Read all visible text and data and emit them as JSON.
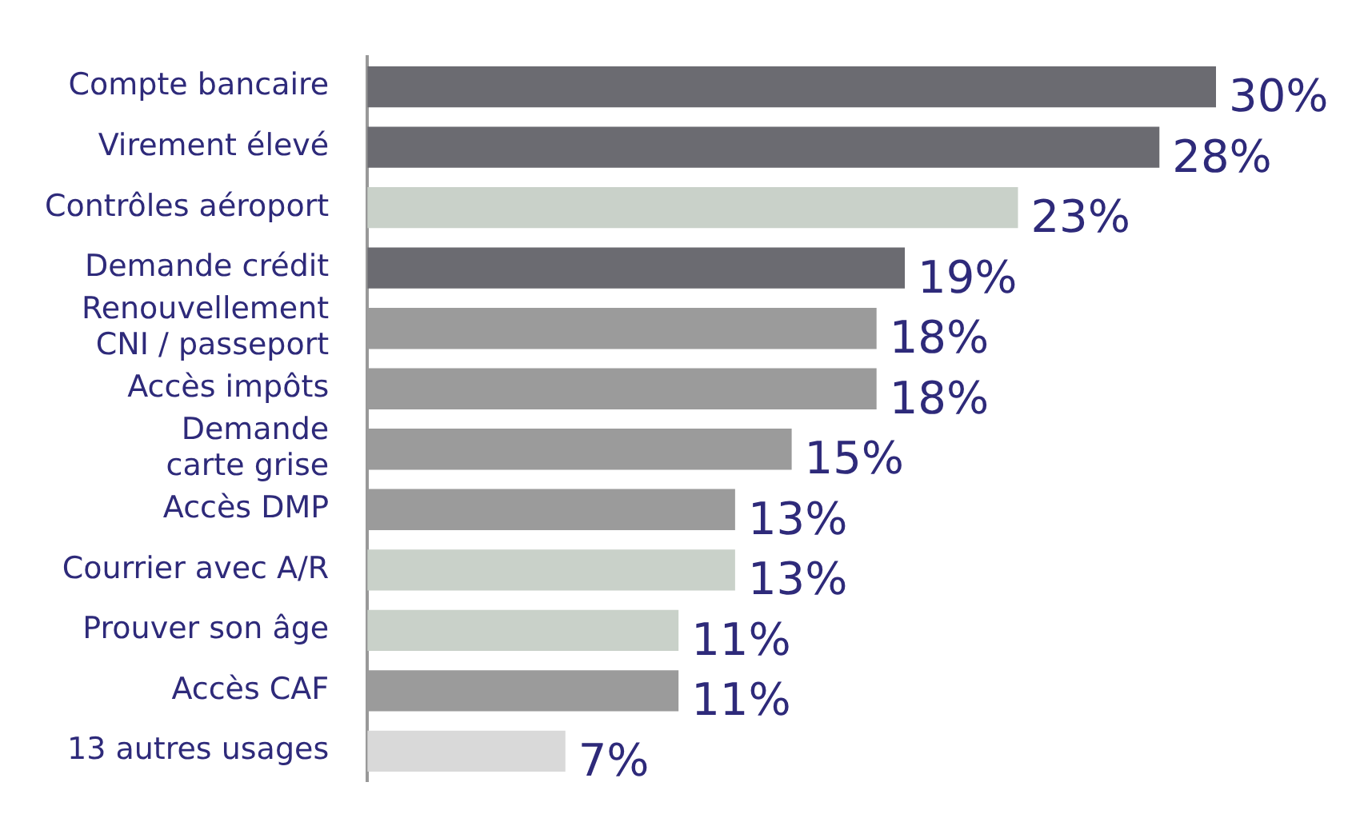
{
  "chart_data": {
    "type": "bar",
    "orientation": "horizontal",
    "categories": [
      "Compte bancaire",
      "Virement élevé",
      "Contrôles aéroport",
      "Demande crédit",
      "Renouvellement\nCNI / passeport",
      "Accès impôts",
      "Demande\ncarte grise",
      "Accès DMP",
      "Courrier avec A/R",
      "Prouver son âge",
      "Accès CAF",
      "13 autres usages"
    ],
    "values": [
      30,
      28,
      23,
      19,
      18,
      18,
      15,
      13,
      13,
      11,
      11,
      7
    ],
    "colors": [
      "#6b6b71",
      "#6b6b71",
      "#c9d1c9",
      "#6b6b71",
      "#9b9b9b",
      "#9b9b9b",
      "#9b9b9b",
      "#9b9b9b",
      "#c9d1c9",
      "#c9d1c9",
      "#9b9b9b",
      "#d9d9d9"
    ],
    "value_labels": [
      "30%",
      "28%",
      "23%",
      "19%",
      "18%",
      "18%",
      "15%",
      "13%",
      "13%",
      "11%",
      "11%",
      "7%"
    ],
    "legend": false
  }
}
